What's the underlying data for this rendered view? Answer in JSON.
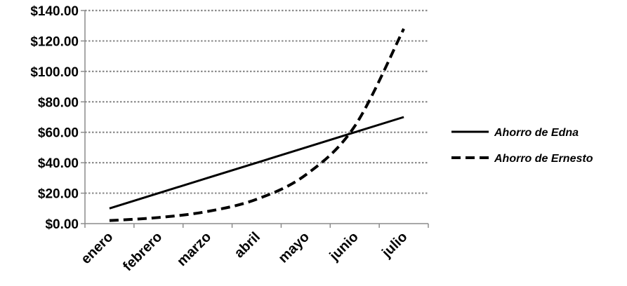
{
  "chart_data": {
    "type": "line",
    "title": "",
    "xlabel": "",
    "ylabel": "",
    "categories": [
      "enero",
      "febrero",
      "marzo",
      "abril",
      "mayo",
      "junio",
      "julio"
    ],
    "ylim": [
      0,
      140
    ],
    "y_ticks": [
      "$0.00",
      "$20.00",
      "$40.00",
      "$60.00",
      "$80.00",
      "$100.00",
      "$120.00",
      "$140.00"
    ],
    "y_tick_values": [
      0,
      20,
      40,
      60,
      80,
      100,
      120,
      140
    ],
    "grid": true,
    "legend_position": "right",
    "series": [
      {
        "name": "Ahorro de Edna",
        "style": "solid",
        "color": "#000000",
        "values": [
          10,
          20,
          30,
          40,
          50,
          60,
          70
        ]
      },
      {
        "name": "Ahorro de Ernesto",
        "style": "dashed",
        "color": "#000000",
        "values": [
          2,
          4,
          8,
          16,
          32,
          64,
          128
        ]
      }
    ]
  }
}
